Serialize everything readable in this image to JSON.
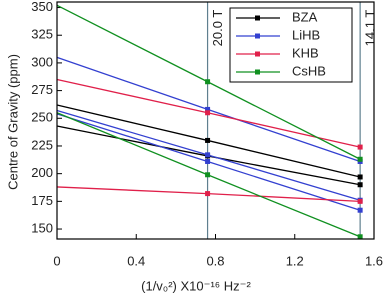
{
  "chart_data": {
    "type": "line",
    "x_label": "(1/v₀²) X10⁻¹⁶ Hz⁻²",
    "y_label": "Centre of Gravity (ppm)",
    "x": [
      0,
      0.76,
      1.53
    ],
    "xlim": [
      0,
      1.6
    ],
    "xticks": [
      0,
      0.4,
      0.8,
      1.2,
      1.6
    ],
    "ylim": [
      141,
      355
    ],
    "yticks": [
      150,
      175,
      200,
      225,
      250,
      275,
      300,
      325,
      350
    ],
    "field_lines": [
      {
        "x": 0.76,
        "label": "20.0 T"
      },
      {
        "x": 1.53,
        "label": "14.1 T"
      }
    ],
    "field_line_color": "#5f7f8f",
    "legend": "top-right",
    "series": [
      {
        "name": "BZA",
        "color": "#000000",
        "lines": [
          [
            262,
            230,
            197
          ],
          [
            243,
            216,
            190
          ]
        ]
      },
      {
        "name": "LiHB",
        "color": "#3340d0",
        "lines": [
          [
            305,
            258,
            211
          ],
          [
            257,
            217,
            176
          ],
          [
            254,
            211,
            167
          ]
        ]
      },
      {
        "name": "KHB",
        "color": "#e0204a",
        "lines": [
          [
            285,
            255,
            224
          ],
          [
            188,
            182,
            175
          ]
        ]
      },
      {
        "name": "CsHB",
        "color": "#109020",
        "lines": [
          [
            352,
            283,
            213
          ],
          [
            255,
            199,
            143
          ]
        ]
      }
    ]
  }
}
